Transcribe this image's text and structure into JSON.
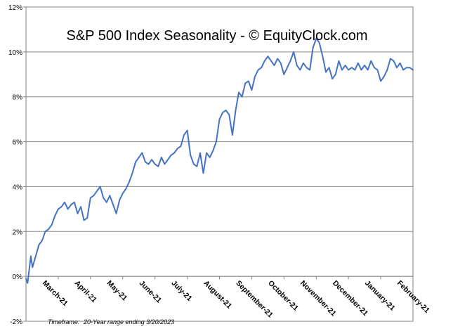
{
  "chart_data": {
    "type": "line",
    "title": "S&P 500 Index Seasonality - © EquityClock.com",
    "xlabel": "",
    "ylabel": "",
    "ylim": [
      -2,
      12
    ],
    "y_ticks": [
      -2,
      0,
      2,
      4,
      6,
      8,
      10,
      12
    ],
    "y_tick_labels": [
      "-2%",
      "0%",
      "2%",
      "4%",
      "6%",
      "8%",
      "10%",
      "12%"
    ],
    "x_range": [
      0,
      12
    ],
    "x_ticks": [
      0.5,
      1.5,
      2.5,
      3.5,
      4.5,
      5.5,
      6.5,
      7.5,
      8.5,
      9.5,
      10.5,
      11.5
    ],
    "categories": [
      "March-21",
      "April-21",
      "May-21",
      "June-21",
      "July-21",
      "August-21",
      "September-21",
      "October-21",
      "November-21",
      "December-21",
      "January-21",
      "February-21"
    ],
    "grid": true,
    "footnote_label": "Timeframe:",
    "footnote_text": "20-Year  range ending 3/20/2023",
    "series": [
      {
        "name": "S&P 500 Index Seasonality",
        "color": "#4472C4",
        "x": [
          0,
          0.05,
          0.1,
          0.15,
          0.2,
          0.3,
          0.4,
          0.5,
          0.6,
          0.7,
          0.8,
          0.9,
          1.0,
          1.1,
          1.2,
          1.3,
          1.4,
          1.5,
          1.6,
          1.7,
          1.8,
          1.9,
          2.0,
          2.1,
          2.2,
          2.3,
          2.4,
          2.5,
          2.6,
          2.7,
          2.8,
          2.9,
          3.0,
          3.1,
          3.2,
          3.3,
          3.4,
          3.5,
          3.6,
          3.7,
          3.8,
          3.9,
          4.0,
          4.1,
          4.2,
          4.3,
          4.4,
          4.5,
          4.6,
          4.7,
          4.8,
          4.9,
          5.0,
          5.1,
          5.2,
          5.3,
          5.4,
          5.5,
          5.6,
          5.7,
          5.8,
          5.9,
          6.0,
          6.1,
          6.2,
          6.3,
          6.4,
          6.5,
          6.6,
          6.7,
          6.8,
          6.9,
          7.0,
          7.1,
          7.2,
          7.3,
          7.4,
          7.5,
          7.6,
          7.7,
          7.8,
          7.9,
          8.0,
          8.1,
          8.2,
          8.3,
          8.4,
          8.5,
          8.6,
          8.7,
          8.8,
          8.9,
          9.0,
          9.1,
          9.2,
          9.3,
          9.4,
          9.5,
          9.6,
          9.7,
          9.8,
          9.9,
          10.0,
          10.1,
          10.2,
          10.3,
          10.4,
          10.5,
          10.6,
          10.7,
          10.8,
          10.9,
          11.0,
          11.1,
          11.2,
          11.3,
          11.4,
          11.5,
          11.6,
          11.7,
          11.8,
          11.9,
          12.0
        ],
        "values": [
          -0.1,
          -0.3,
          0.3,
          0.9,
          0.4,
          0.9,
          1.4,
          1.6,
          2.0,
          2.1,
          2.3,
          2.7,
          3.0,
          3.1,
          3.3,
          3.0,
          3.2,
          3.3,
          2.8,
          3.1,
          2.5,
          2.6,
          3.5,
          3.6,
          3.8,
          4.0,
          3.5,
          3.3,
          3.6,
          3.2,
          2.8,
          3.4,
          3.7,
          3.9,
          4.2,
          4.6,
          5.1,
          5.3,
          5.5,
          5.1,
          5.0,
          5.2,
          5.0,
          4.9,
          5.3,
          5.0,
          5.2,
          5.4,
          5.5,
          5.7,
          5.8,
          6.3,
          6.5,
          5.4,
          5.0,
          4.9,
          5.5,
          4.6,
          5.5,
          5.3,
          5.6,
          6.0,
          7.0,
          7.3,
          7.4,
          7.2,
          6.3,
          7.4,
          8.2,
          8.0,
          8.6,
          8.7,
          8.3,
          8.9,
          9.2,
          9.3,
          9.6,
          9.8,
          9.6,
          9.4,
          9.7,
          9.5,
          9.0,
          9.3,
          9.6,
          10.0,
          9.4,
          9.2,
          9.5,
          9.3,
          9.2,
          10.2,
          10.6,
          10.4,
          9.8,
          9.1,
          9.3,
          8.8,
          9.0,
          9.6,
          9.2,
          9.4,
          9.2,
          9.3,
          9.2,
          9.5,
          9.2,
          9.4,
          9.2,
          9.6,
          9.3,
          9.2,
          8.7,
          8.9,
          9.2,
          9.7,
          9.6,
          9.3,
          9.5,
          9.2,
          9.3,
          9.3,
          9.2
        ]
      }
    ]
  }
}
